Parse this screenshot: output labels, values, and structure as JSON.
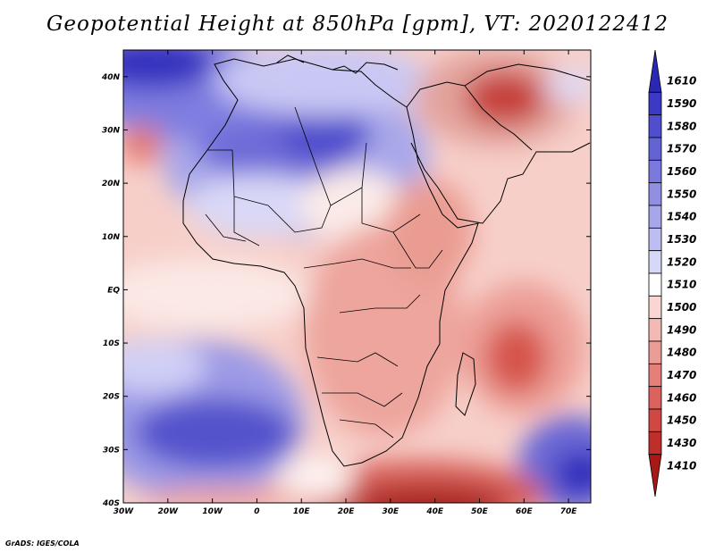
{
  "title": "Geopotential Height at 850hPa [gpm], VT: 2020122412",
  "credit": "GrADS: IGES/COLA",
  "map": {
    "x_ticks": [
      "30W",
      "20W",
      "10W",
      "0",
      "10E",
      "20E",
      "30E",
      "40E",
      "50E",
      "60E",
      "70E"
    ],
    "y_ticks": [
      "40N",
      "30N",
      "20N",
      "10N",
      "EQ",
      "10S",
      "20S",
      "30S",
      "40S"
    ],
    "lon_range": [
      -30,
      75
    ],
    "lat_range": [
      -40,
      45
    ]
  },
  "colorbar": {
    "levels": [
      "1610",
      "1590",
      "1580",
      "1570",
      "1560",
      "1550",
      "1540",
      "1530",
      "1520",
      "1510",
      "1500",
      "1490",
      "1480",
      "1470",
      "1460",
      "1450",
      "1430",
      "1410"
    ],
    "colors": [
      "#2a27b4",
      "#3c39c4",
      "#4f4ecf",
      "#6463d6",
      "#7a79dd",
      "#908fe3",
      "#a7a6ea",
      "#bebdf1",
      "#d7d7f7",
      "#ffffff",
      "#f8d6d3",
      "#f3b9b4",
      "#ec9c96",
      "#e57f79",
      "#dc625d",
      "#d14743",
      "#c02e2b",
      "#a81815"
    ]
  }
}
